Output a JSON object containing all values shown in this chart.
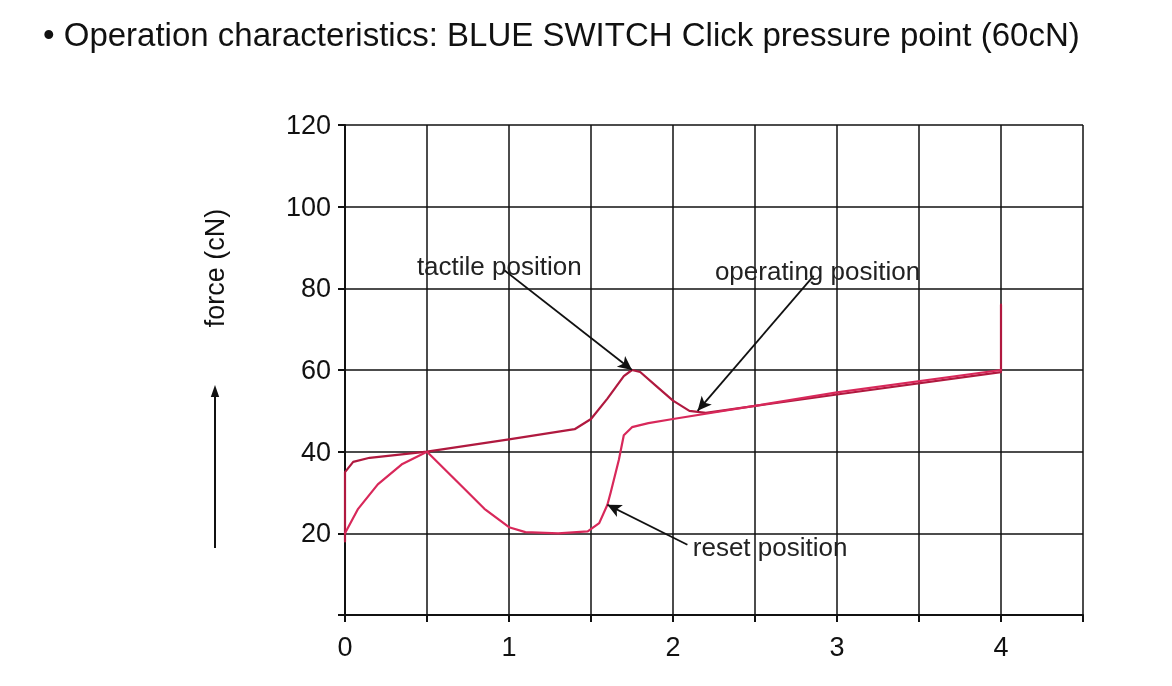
{
  "chart_data": {
    "type": "line",
    "title": "• Operation characteristics: BLUE SWITCH Click pressure point (60cN)",
    "ylabel": "force (cN)",
    "xlim": [
      0,
      4.5
    ],
    "xticks": [
      0,
      {
        "value": 0.5,
        "label": null
      },
      1,
      {
        "value": 1.5,
        "label": null
      },
      2,
      {
        "value": 2.5,
        "label": null
      },
      3,
      {
        "value": 3.5,
        "label": null
      },
      4,
      {
        "value": 4.5,
        "label": null
      }
    ],
    "ylim": [
      0,
      120
    ],
    "yticks": [
      {
        "value": 0,
        "label": null
      },
      20,
      40,
      60,
      80,
      100,
      120
    ],
    "grid": true,
    "marker": "none",
    "line_style": "solid",
    "series": [
      {
        "color": "#b0193f",
        "x": [
          0,
          0,
          0.05,
          0.15,
          0.5,
          1,
          1.4,
          1.5,
          1.6,
          1.7,
          1.75,
          1.8,
          1.9,
          2,
          2.1,
          2.2,
          3,
          4,
          4
        ],
        "values": [
          18,
          35,
          37.5,
          38.5,
          40,
          43,
          45.5,
          48,
          53,
          58.5,
          60,
          59.5,
          56,
          52.5,
          50,
          49.5,
          54,
          59.5,
          76
        ]
      },
      {
        "color": "#d8285a",
        "x": [
          4,
          3,
          2,
          1.85,
          1.75,
          1.7,
          1.67,
          1.62,
          1.6,
          1.55,
          1.48,
          1.3,
          1.1,
          1,
          0.85,
          0.7,
          0.5,
          0.35,
          0.2,
          0.08,
          0
        ],
        "values": [
          60,
          54.5,
          48,
          47,
          46,
          44,
          38,
          30,
          27,
          22.5,
          20.5,
          20,
          20.3,
          21.5,
          26,
          32,
          40,
          37,
          32,
          26,
          20
        ]
      }
    ],
    "annotations": [
      {
        "text": "tactile position",
        "x": 1.75,
        "y": 60
      },
      {
        "text": "operating position",
        "x": 2.15,
        "y": 50
      },
      {
        "text": "reset position",
        "x": 1.6,
        "y": 27
      }
    ]
  }
}
